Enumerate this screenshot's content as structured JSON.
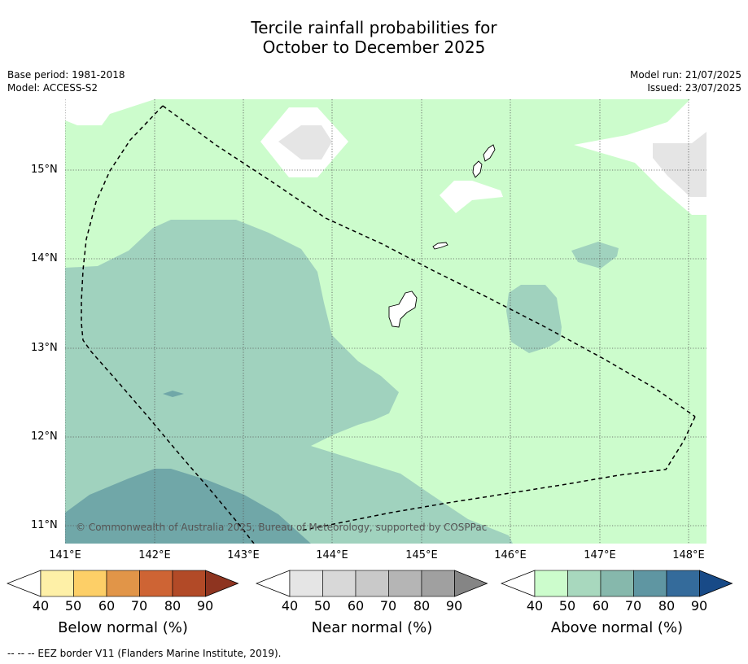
{
  "title_line1": "Tercile rainfall probabilities for",
  "title_line2": "October to December 2025",
  "meta_left": {
    "base_period": "Base period: 1981-2018",
    "model": "Model: ACCESS-S2"
  },
  "meta_right": {
    "model_run": "Model run: 21/07/2025",
    "issued": "Issued: 23/07/2025"
  },
  "map": {
    "lat_labels": [
      "15°N",
      "14°N",
      "13°N",
      "12°N",
      "11°N"
    ],
    "lon_labels": [
      "141°E",
      "142°E",
      "143°E",
      "144°E",
      "145°E",
      "146°E",
      "147°E",
      "148°E"
    ],
    "copyright": "© Commonwealth of Australia 2025, Bureau of Meteorology, supported by COSPPac",
    "colors": {
      "above_40_50": "#ccfccc",
      "above_50_60": "#a0d2be",
      "above_60_70": "#70a7a8",
      "near_40_50": "#e5e5e5",
      "no_dominant": "#ffffff",
      "eez": "#000000"
    }
  },
  "colorbars": [
    {
      "title": "Below normal (%)",
      "ticks": [
        "40",
        "50",
        "60",
        "70",
        "80",
        "90"
      ],
      "colors": [
        "#fef0a7",
        "#fdcf67",
        "#e19548",
        "#ce6434",
        "#b24a27",
        "#8e3420"
      ]
    },
    {
      "title": "Near normal (%)",
      "ticks": [
        "40",
        "50",
        "60",
        "70",
        "80",
        "90"
      ],
      "colors": [
        "#e5e5e5",
        "#d8d8d8",
        "#c9c9c9",
        "#b5b5b5",
        "#a0a0a0",
        "#858585"
      ]
    },
    {
      "title": "Above normal (%)",
      "ticks": [
        "40",
        "50",
        "60",
        "70",
        "80",
        "90"
      ],
      "colors": [
        "#ccfccc",
        "#a8d8be",
        "#86b8ac",
        "#5f96a2",
        "#346b9b",
        "#184a87"
      ]
    }
  ],
  "footnote": "--  --  -- EEZ border V11 (Flanders Marine Institute, 2019)."
}
